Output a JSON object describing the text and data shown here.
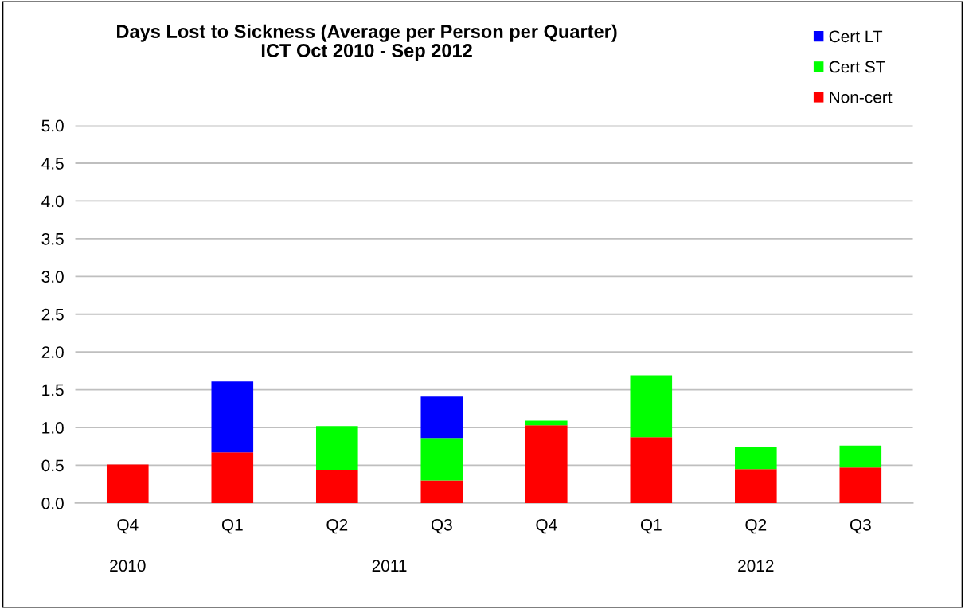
{
  "chart_data": {
    "type": "bar",
    "title": "Days Lost to Sickness (Average per Person per Quarter)\nICT Oct 2010 - Sep 2012",
    "categories": [
      "Q4",
      "Q1",
      "Q2",
      "Q3",
      "Q4",
      "Q1",
      "Q2",
      "Q3"
    ],
    "stacked": true,
    "series": [
      {
        "name": "Non-cert",
        "color": "#ff0000",
        "values": [
          0.51,
          0.67,
          0.43,
          0.3,
          1.03,
          0.87,
          0.45,
          0.47
        ]
      },
      {
        "name": "Cert ST",
        "color": "#00ff00",
        "values": [
          0,
          0,
          0.59,
          0.56,
          0.06,
          0.82,
          0.29,
          0.29
        ]
      },
      {
        "name": "Cert LT",
        "color": "#0000ff",
        "values": [
          0,
          0.94,
          0,
          0.55,
          0,
          0,
          0,
          0
        ]
      }
    ],
    "ylim": [
      0,
      5
    ],
    "yticks": [
      {
        "value": 0,
        "label": "0.0"
      },
      {
        "value": 0.5,
        "label": "0.5"
      },
      {
        "value": 1,
        "label": "1.0"
      },
      {
        "value": 1.5,
        "label": "1.5"
      },
      {
        "value": 2,
        "label": "2.0"
      },
      {
        "value": 2.5,
        "label": "2.5"
      },
      {
        "value": 3,
        "label": "3.0"
      },
      {
        "value": 3.5,
        "label": "3.5"
      },
      {
        "value": 4,
        "label": "4.0"
      },
      {
        "value": 4.5,
        "label": "4.5"
      },
      {
        "value": 5,
        "label": "5.0"
      }
    ],
    "grid": "y",
    "legend": "top right",
    "annotations": [
      "2010",
      "2011",
      "2012"
    ]
  }
}
